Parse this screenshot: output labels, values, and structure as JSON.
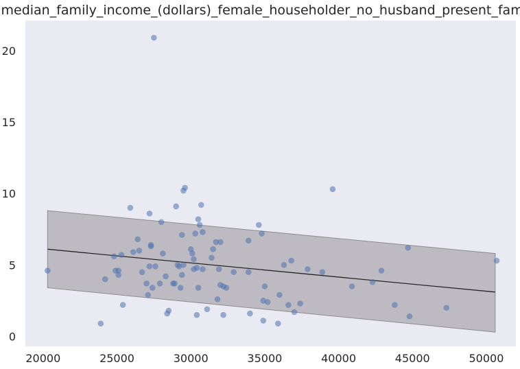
{
  "chart_data": {
    "type": "scatter",
    "title": "median_family_income_(dollars)_female_householder_no_husband_present_family",
    "xlabel": "",
    "ylabel": "",
    "xlim": [
      18800,
      52000
    ],
    "ylim": [
      -0.7,
      22.1
    ],
    "x_ticks": [
      20000,
      25000,
      30000,
      35000,
      40000,
      45000,
      50000
    ],
    "y_ticks": [
      0,
      5,
      10,
      15,
      20
    ],
    "grid": false,
    "colors": {
      "background": "#eaeaf2",
      "points": "#4c72b0",
      "band": "#a9a7ad",
      "line": "#262626"
    },
    "points": [
      [
        20300,
        4.6
      ],
      [
        23900,
        0.9
      ],
      [
        24200,
        4.0
      ],
      [
        24800,
        5.6
      ],
      [
        24900,
        4.6
      ],
      [
        25100,
        4.6
      ],
      [
        25100,
        4.3
      ],
      [
        25300,
        5.7
      ],
      [
        25400,
        2.2
      ],
      [
        25900,
        9.0
      ],
      [
        26100,
        5.9
      ],
      [
        26400,
        6.8
      ],
      [
        26500,
        6.0
      ],
      [
        26700,
        4.5
      ],
      [
        27000,
        3.7
      ],
      [
        27100,
        2.9
      ],
      [
        27200,
        4.9
      ],
      [
        27200,
        8.6
      ],
      [
        27300,
        6.4
      ],
      [
        27300,
        6.3
      ],
      [
        27400,
        3.4
      ],
      [
        27500,
        20.9
      ],
      [
        27600,
        4.9
      ],
      [
        27900,
        3.7
      ],
      [
        28000,
        8.0
      ],
      [
        28100,
        5.8
      ],
      [
        28300,
        4.2
      ],
      [
        28400,
        1.6
      ],
      [
        28500,
        1.8
      ],
      [
        28800,
        3.7
      ],
      [
        28900,
        3.7
      ],
      [
        29000,
        9.1
      ],
      [
        29100,
        5.0
      ],
      [
        29200,
        4.9
      ],
      [
        29300,
        3.4
      ],
      [
        29400,
        4.3
      ],
      [
        29400,
        7.1
      ],
      [
        29500,
        5.0
      ],
      [
        29500,
        10.2
      ],
      [
        29600,
        10.4
      ],
      [
        30000,
        6.1
      ],
      [
        30100,
        5.8
      ],
      [
        30200,
        4.7
      ],
      [
        30200,
        5.4
      ],
      [
        30300,
        7.2
      ],
      [
        30400,
        1.5
      ],
      [
        30400,
        4.8
      ],
      [
        30500,
        3.4
      ],
      [
        30500,
        8.2
      ],
      [
        30600,
        7.8
      ],
      [
        30700,
        9.2
      ],
      [
        30800,
        4.7
      ],
      [
        30800,
        7.3
      ],
      [
        31100,
        1.9
      ],
      [
        31400,
        5.5
      ],
      [
        31500,
        6.1
      ],
      [
        31700,
        6.6
      ],
      [
        31800,
        2.6
      ],
      [
        31900,
        4.7
      ],
      [
        32000,
        3.6
      ],
      [
        32000,
        6.6
      ],
      [
        32200,
        1.5
      ],
      [
        32200,
        3.5
      ],
      [
        32400,
        3.4
      ],
      [
        32900,
        4.5
      ],
      [
        33900,
        6.7
      ],
      [
        33900,
        4.5
      ],
      [
        34000,
        1.6
      ],
      [
        34600,
        7.8
      ],
      [
        34800,
        7.2
      ],
      [
        34900,
        2.5
      ],
      [
        34900,
        1.1
      ],
      [
        35000,
        3.5
      ],
      [
        35200,
        2.4
      ],
      [
        35900,
        0.9
      ],
      [
        36000,
        2.9
      ],
      [
        36300,
        5.0
      ],
      [
        36600,
        2.2
      ],
      [
        36800,
        5.3
      ],
      [
        37000,
        1.7
      ],
      [
        37400,
        2.3
      ],
      [
        37900,
        4.7
      ],
      [
        38900,
        4.5
      ],
      [
        39600,
        10.3
      ],
      [
        40900,
        3.5
      ],
      [
        42300,
        3.8
      ],
      [
        42900,
        4.6
      ],
      [
        43800,
        2.2
      ],
      [
        44700,
        6.2
      ],
      [
        44800,
        1.4
      ],
      [
        47300,
        2.0
      ],
      [
        50700,
        5.3
      ]
    ],
    "trend_line": {
      "x": [
        20300,
        50600
      ],
      "y": [
        6.1,
        3.1
      ]
    },
    "band_upper": {
      "x": [
        20300,
        50600
      ],
      "y": [
        8.8,
        5.8
      ]
    },
    "band_lower": {
      "x": [
        20300,
        50600
      ],
      "y": [
        3.4,
        0.3
      ]
    }
  }
}
